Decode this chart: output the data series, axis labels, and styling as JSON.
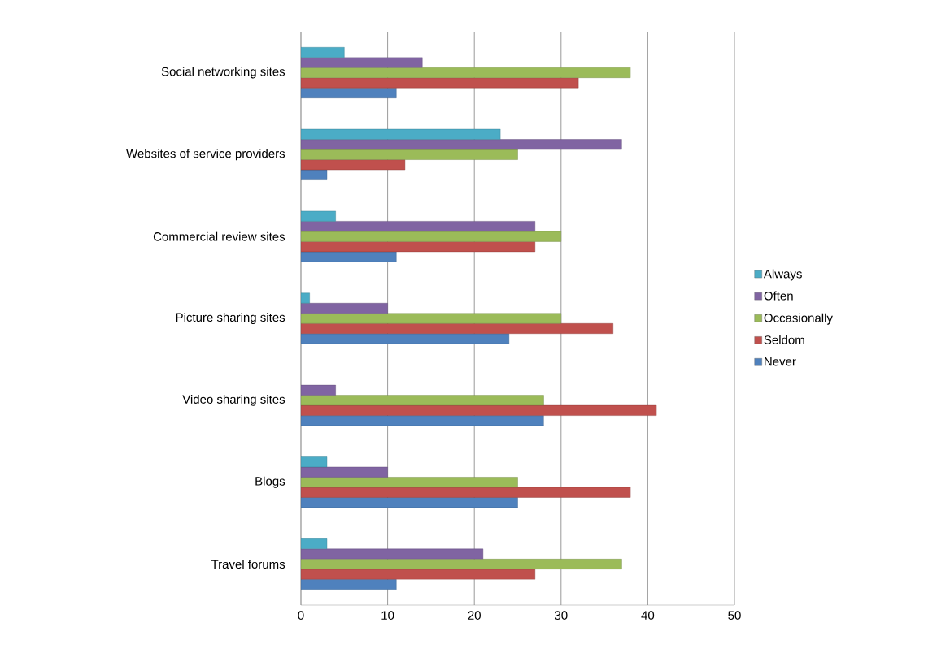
{
  "chart_data": {
    "type": "bar",
    "orientation": "horizontal",
    "categories": [
      "Social networking sites",
      "Websites of service providers",
      "Commercial review sites",
      "Picture sharing sites",
      "Video sharing sites",
      "Blogs",
      "Travel forums"
    ],
    "series": [
      {
        "name": "Always",
        "color": "#4bacc6",
        "values": [
          5,
          23,
          4,
          1,
          null,
          3,
          3
        ]
      },
      {
        "name": "Often",
        "color": "#8064a2",
        "values": [
          14,
          37,
          27,
          10,
          4,
          10,
          21
        ]
      },
      {
        "name": "Occasionally",
        "color": "#9bbb59",
        "values": [
          38,
          25,
          30,
          30,
          28,
          25,
          37
        ]
      },
      {
        "name": "Seldom",
        "color": "#c0504d",
        "values": [
          32,
          12,
          27,
          36,
          41,
          38,
          27
        ]
      },
      {
        "name": "Never",
        "color": "#4f81bd",
        "values": [
          11,
          3,
          11,
          24,
          28,
          25,
          11
        ]
      }
    ],
    "xlim": [
      0,
      50
    ],
    "xticks": [
      0,
      10,
      20,
      30,
      40,
      50
    ],
    "grid": "x",
    "legend": "right"
  }
}
